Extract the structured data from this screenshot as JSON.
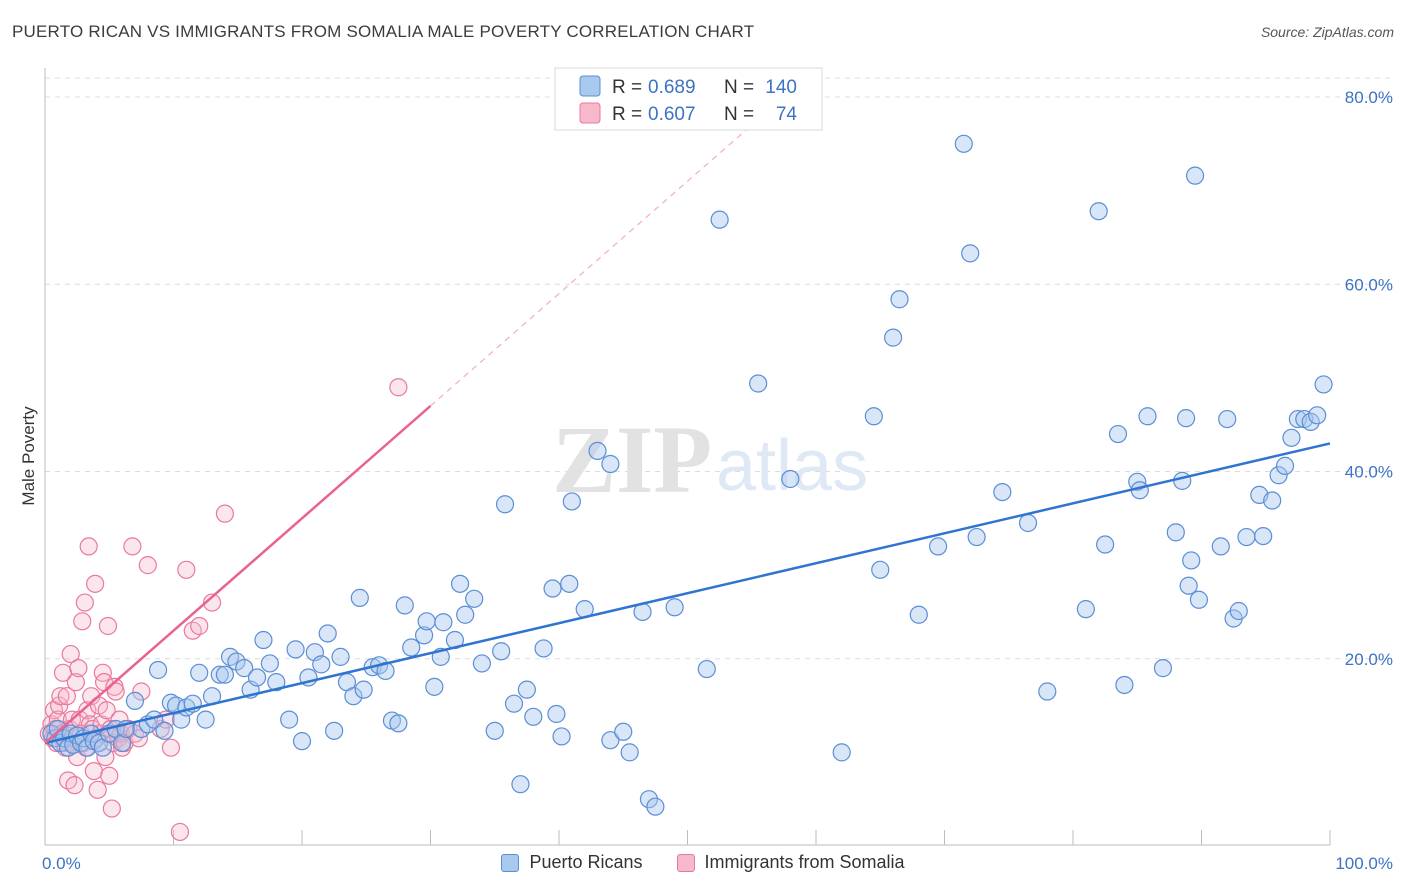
{
  "title": "PUERTO RICAN VS IMMIGRANTS FROM SOMALIA MALE POVERTY CORRELATION CHART",
  "source": "Source: ZipAtlas.com",
  "watermark": {
    "zip": "ZIP",
    "atlas": "atlas"
  },
  "legend": {
    "r_label": "R =",
    "n_label": "N =",
    "rows": [
      {
        "r": "0.689",
        "n": "140"
      },
      {
        "r": "0.607",
        "n": "74"
      }
    ]
  },
  "bottom_legend": [
    "Puerto Ricans",
    "Immigrants from Somalia"
  ],
  "colors": {
    "blue_fill": "#a9c8ee",
    "blue_stroke": "#5b8ed6",
    "blue_line": "#2f74d0",
    "pink_fill": "#f7b8cb",
    "pink_stroke": "#e9799c",
    "pink_line": "#e8638f",
    "tick_text": "#3c73c4",
    "grid": "#dcdcdc"
  },
  "chart_data": {
    "type": "scatter",
    "title": "PUERTO RICAN VS IMMIGRANTS FROM SOMALIA MALE POVERTY CORRELATION CHART",
    "xlabel": "",
    "ylabel": "Male Poverty",
    "xlim": [
      0,
      100
    ],
    "ylim": [
      0,
      82
    ],
    "x_tick_labels": [
      {
        "value": 0,
        "label": "0.0%"
      },
      {
        "value": 100,
        "label": "100.0%"
      }
    ],
    "y_tick_labels": [
      {
        "value": 20,
        "label": "20.0%"
      },
      {
        "value": 40,
        "label": "40.0%"
      },
      {
        "value": 60,
        "label": "60.0%"
      },
      {
        "value": 80,
        "label": "80.0%"
      }
    ],
    "grid": true,
    "legend_position": "top-center",
    "series": [
      {
        "name": "Puerto Ricans",
        "r": 0.689,
        "n": 140,
        "trend": {
          "x0": 0,
          "y0": 11.0,
          "x1": 100,
          "y1": 43.0,
          "dashed": false
        },
        "points": [
          [
            0.5,
            12.0
          ],
          [
            0.8,
            11.5
          ],
          [
            1.0,
            12.5
          ],
          [
            1.2,
            11.0
          ],
          [
            1.5,
            11.5
          ],
          [
            1.8,
            10.5
          ],
          [
            2.0,
            12.0
          ],
          [
            2.2,
            10.8
          ],
          [
            2.5,
            11.8
          ],
          [
            2.8,
            11.0
          ],
          [
            3.0,
            11.5
          ],
          [
            3.3,
            10.5
          ],
          [
            3.6,
            12.0
          ],
          [
            3.8,
            11.2
          ],
          [
            4.2,
            11.0
          ],
          [
            4.5,
            10.5
          ],
          [
            5.0,
            12.0
          ],
          [
            5.5,
            12.5
          ],
          [
            6.0,
            11.0
          ],
          [
            6.3,
            12.5
          ],
          [
            7.0,
            15.5
          ],
          [
            7.5,
            12.5
          ],
          [
            8.0,
            13.0
          ],
          [
            8.5,
            13.5
          ],
          [
            8.8,
            18.8
          ],
          [
            9.3,
            12.3
          ],
          [
            9.8,
            15.3
          ],
          [
            10.2,
            15.0
          ],
          [
            10.6,
            13.5
          ],
          [
            11.0,
            14.8
          ],
          [
            11.5,
            15.2
          ],
          [
            12.0,
            18.5
          ],
          [
            12.5,
            13.5
          ],
          [
            13.0,
            16.0
          ],
          [
            13.6,
            18.3
          ],
          [
            14.0,
            18.3
          ],
          [
            14.4,
            20.2
          ],
          [
            14.9,
            19.7
          ],
          [
            15.5,
            19.0
          ],
          [
            16.0,
            16.7
          ],
          [
            16.5,
            18.0
          ],
          [
            17.0,
            22.0
          ],
          [
            17.5,
            19.5
          ],
          [
            18.0,
            17.5
          ],
          [
            19.0,
            13.5
          ],
          [
            19.5,
            21.0
          ],
          [
            20.0,
            11.2
          ],
          [
            20.5,
            18.0
          ],
          [
            21.0,
            20.7
          ],
          [
            21.5,
            19.4
          ],
          [
            22.0,
            22.7
          ],
          [
            22.5,
            12.3
          ],
          [
            23.0,
            20.2
          ],
          [
            23.5,
            17.5
          ],
          [
            24.0,
            16.0
          ],
          [
            24.5,
            26.5
          ],
          [
            24.8,
            16.7
          ],
          [
            25.5,
            19.1
          ],
          [
            26.0,
            19.3
          ],
          [
            26.5,
            18.7
          ],
          [
            27.0,
            13.4
          ],
          [
            27.5,
            13.1
          ],
          [
            28.0,
            25.7
          ],
          [
            28.5,
            21.2
          ],
          [
            29.5,
            22.5
          ],
          [
            29.7,
            24.0
          ],
          [
            30.3,
            17.0
          ],
          [
            30.8,
            20.2
          ],
          [
            31.0,
            23.9
          ],
          [
            31.9,
            22.0
          ],
          [
            32.3,
            28.0
          ],
          [
            32.7,
            24.7
          ],
          [
            33.4,
            26.4
          ],
          [
            34.0,
            19.5
          ],
          [
            35.0,
            12.3
          ],
          [
            35.5,
            20.8
          ],
          [
            35.8,
            36.5
          ],
          [
            36.5,
            15.2
          ],
          [
            37.0,
            6.6
          ],
          [
            37.5,
            16.7
          ],
          [
            38.0,
            13.8
          ],
          [
            38.8,
            21.1
          ],
          [
            39.5,
            27.5
          ],
          [
            39.8,
            14.1
          ],
          [
            40.2,
            11.7
          ],
          [
            40.8,
            28.0
          ],
          [
            41.0,
            36.8
          ],
          [
            42.0,
            25.3
          ],
          [
            43.0,
            42.2
          ],
          [
            44.0,
            40.8
          ],
          [
            44.0,
            11.3
          ],
          [
            45.0,
            12.2
          ],
          [
            45.5,
            10.0
          ],
          [
            46.5,
            25.0
          ],
          [
            47.0,
            5.0
          ],
          [
            47.5,
            4.2
          ],
          [
            49.0,
            25.5
          ],
          [
            51.5,
            18.9
          ],
          [
            52.5,
            66.9
          ],
          [
            55.5,
            49.4
          ],
          [
            58.0,
            39.2
          ],
          [
            62.0,
            10.0
          ],
          [
            64.5,
            45.9
          ],
          [
            65.0,
            29.5
          ],
          [
            66.0,
            54.3
          ],
          [
            66.5,
            58.4
          ],
          [
            68.0,
            24.7
          ],
          [
            69.5,
            32.0
          ],
          [
            71.5,
            75.0
          ],
          [
            72.0,
            63.3
          ],
          [
            72.5,
            33.0
          ],
          [
            74.5,
            37.8
          ],
          [
            76.5,
            34.5
          ],
          [
            78.0,
            16.5
          ],
          [
            81.0,
            25.3
          ],
          [
            82.0,
            67.8
          ],
          [
            82.5,
            32.2
          ],
          [
            83.5,
            44.0
          ],
          [
            84.0,
            17.2
          ],
          [
            85.0,
            38.9
          ],
          [
            85.2,
            38.0
          ],
          [
            85.8,
            45.9
          ],
          [
            87.0,
            19.0
          ],
          [
            88.0,
            33.5
          ],
          [
            88.5,
            39.0
          ],
          [
            88.8,
            45.7
          ],
          [
            89.0,
            27.8
          ],
          [
            89.2,
            30.5
          ],
          [
            89.5,
            71.6
          ],
          [
            89.8,
            26.3
          ],
          [
            91.5,
            32.0
          ],
          [
            92.0,
            45.6
          ],
          [
            92.5,
            24.3
          ],
          [
            92.9,
            25.1
          ],
          [
            93.5,
            33.0
          ],
          [
            94.5,
            37.5
          ],
          [
            94.8,
            33.1
          ],
          [
            95.5,
            36.9
          ],
          [
            96.0,
            39.6
          ],
          [
            96.5,
            40.6
          ],
          [
            97.0,
            43.6
          ],
          [
            97.5,
            45.6
          ],
          [
            98.0,
            45.6
          ],
          [
            98.5,
            45.3
          ],
          [
            99.0,
            46.0
          ],
          [
            99.5,
            49.3
          ]
        ]
      },
      {
        "name": "Immigrants from Somalia",
        "r": 0.607,
        "n": 74,
        "trend": {
          "x0": 0,
          "y0": 11.0,
          "x1": 30,
          "y1": 47.0,
          "dashed_extension_to": {
            "x": 60,
            "y": 83.0
          }
        },
        "points": [
          [
            0.3,
            12.0
          ],
          [
            0.5,
            13.0
          ],
          [
            0.6,
            11.5
          ],
          [
            0.7,
            14.5
          ],
          [
            0.8,
            12.5
          ],
          [
            0.9,
            11.0
          ],
          [
            1.0,
            13.5
          ],
          [
            1.1,
            15.0
          ],
          [
            1.2,
            16.0
          ],
          [
            1.3,
            12.0
          ],
          [
            1.4,
            18.5
          ],
          [
            1.5,
            11.0
          ],
          [
            1.6,
            10.5
          ],
          [
            1.7,
            16.0
          ],
          [
            1.8,
            7.0
          ],
          [
            1.9,
            12.5
          ],
          [
            2.0,
            20.5
          ],
          [
            2.1,
            13.5
          ],
          [
            2.2,
            11.5
          ],
          [
            2.3,
            6.5
          ],
          [
            2.4,
            17.5
          ],
          [
            2.5,
            9.5
          ],
          [
            2.6,
            19.0
          ],
          [
            2.7,
            13.5
          ],
          [
            2.8,
            12.0
          ],
          [
            2.9,
            24.0
          ],
          [
            3.0,
            11.0
          ],
          [
            3.1,
            26.0
          ],
          [
            3.2,
            10.5
          ],
          [
            3.3,
            14.5
          ],
          [
            3.4,
            32.0
          ],
          [
            3.5,
            13.0
          ],
          [
            3.6,
            16.0
          ],
          [
            3.7,
            12.5
          ],
          [
            3.8,
            8.0
          ],
          [
            3.9,
            28.0
          ],
          [
            4.0,
            11.5
          ],
          [
            4.1,
            6.0
          ],
          [
            4.2,
            15.0
          ],
          [
            4.3,
            12.0
          ],
          [
            4.4,
            13.0
          ],
          [
            4.5,
            18.5
          ],
          [
            4.6,
            17.5
          ],
          [
            4.7,
            9.5
          ],
          [
            4.8,
            14.5
          ],
          [
            4.9,
            23.5
          ],
          [
            5.0,
            7.5
          ],
          [
            5.1,
            12.5
          ],
          [
            5.2,
            4.0
          ],
          [
            5.3,
            11.0
          ],
          [
            5.4,
            17.0
          ],
          [
            5.5,
            16.5
          ],
          [
            5.6,
            12.0
          ],
          [
            5.7,
            11.5
          ],
          [
            5.8,
            13.5
          ],
          [
            5.9,
            12.0
          ],
          [
            6.0,
            10.5
          ],
          [
            6.2,
            11.0
          ],
          [
            6.5,
            12.5
          ],
          [
            6.8,
            32.0
          ],
          [
            7.0,
            12.0
          ],
          [
            7.3,
            11.5
          ],
          [
            7.5,
            16.5
          ],
          [
            8.0,
            30.0
          ],
          [
            9.0,
            12.5
          ],
          [
            9.4,
            13.5
          ],
          [
            9.8,
            10.5
          ],
          [
            11.0,
            29.5
          ],
          [
            11.5,
            23.0
          ],
          [
            12.0,
            23.5
          ],
          [
            13.0,
            26.0
          ],
          [
            10.5,
            1.5
          ],
          [
            14.0,
            35.5
          ],
          [
            27.5,
            49.0
          ]
        ]
      }
    ]
  }
}
